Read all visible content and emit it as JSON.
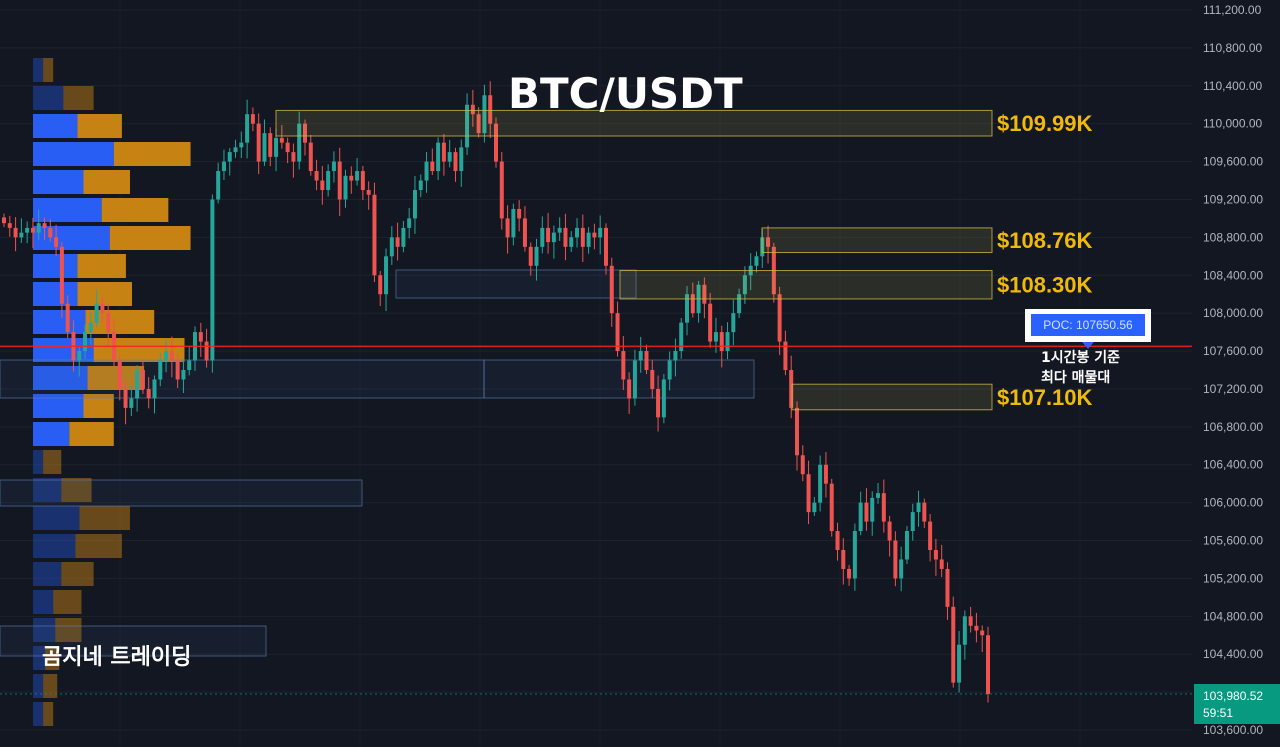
{
  "chart_data": {
    "type": "candlestick",
    "title": "BTC/USDT",
    "watermark": "곰지네 트레이딩",
    "y_axis": {
      "side": "right",
      "range": [
        103500,
        111250
      ],
      "ticks": [
        111200,
        110800,
        110400,
        110000,
        109600,
        109200,
        108800,
        108400,
        108000,
        107600,
        107200,
        106800,
        106400,
        106000,
        105600,
        105200,
        104800,
        104400,
        104000,
        103600
      ],
      "tick_labels": [
        "111,200.00",
        "110,800.00",
        "110,400.00",
        "110,000.00",
        "109,600.00",
        "109,200.00",
        "108,800.00",
        "108,400.00",
        "108,000.00",
        "107,600.00",
        "107,200.00",
        "106,800.00",
        "106,400.00",
        "106,000.00",
        "105,600.00",
        "105,200.00",
        "104,800.00",
        "104,400.00",
        "104,000.00",
        "103,600.00"
      ]
    },
    "grid": true,
    "colors": {
      "background": "#131722",
      "up": "#26a69a",
      "down": "#ef5350",
      "vp_buy": "#2962ff",
      "vp_sell": "#d18814",
      "level_label": "#f0b90b",
      "poc_line": "#ff1e1e",
      "price_tag": "#089981"
    },
    "levels": [
      {
        "label": "$109.99K",
        "low": 109870,
        "high": 110140
      },
      {
        "label": "$108.76K",
        "low": 108640,
        "high": 108900
      },
      {
        "label": "$108.30K",
        "low": 108150,
        "high": 108450
      },
      {
        "label": "$107.10K",
        "low": 106980,
        "high": 107250
      }
    ],
    "poc": {
      "label": "POC: 107650.56",
      "value": 107650.56,
      "note_line1": "1시간봉 기준",
      "note_line2": "최다 매물대"
    },
    "last_price": {
      "value": 103980.52,
      "label": "103,980.52",
      "timer": "59:51"
    },
    "volume_profile": [
      {
        "buy": 0.5,
        "sell": 0.5
      },
      {
        "buy": 1.5,
        "sell": 1.5
      },
      {
        "buy": 2.2,
        "sell": 2.2
      },
      {
        "buy": 4.0,
        "sell": 3.8
      },
      {
        "buy": 2.5,
        "sell": 2.3
      },
      {
        "buy": 3.4,
        "sell": 3.3
      },
      {
        "buy": 3.8,
        "sell": 4.0
      },
      {
        "buy": 2.2,
        "sell": 2.4
      },
      {
        "buy": 2.2,
        "sell": 2.7
      },
      {
        "buy": 2.6,
        "sell": 3.4
      },
      {
        "buy": 3.0,
        "sell": 4.5
      },
      {
        "buy": 2.7,
        "sell": 2.8
      },
      {
        "buy": 2.5,
        "sell": 1.5
      },
      {
        "buy": 1.8,
        "sell": 2.2
      },
      {
        "buy": 0.5,
        "sell": 0.9
      },
      {
        "buy": 1.4,
        "sell": 1.5
      },
      {
        "buy": 2.3,
        "sell": 2.5
      },
      {
        "buy": 2.1,
        "sell": 2.3
      },
      {
        "buy": 1.4,
        "sell": 1.6
      },
      {
        "buy": 1.0,
        "sell": 1.4
      },
      {
        "buy": 1.1,
        "sell": 1.3
      },
      {
        "buy": 0.6,
        "sell": 0.7
      },
      {
        "buy": 0.5,
        "sell": 0.7
      },
      {
        "buy": 0.5,
        "sell": 0.5
      }
    ],
    "candles_close": [
      108950,
      108900,
      108800,
      108850,
      108900,
      108850,
      108950,
      108900,
      108800,
      108700,
      108100,
      107800,
      107500,
      107600,
      107800,
      107900,
      108100,
      108000,
      107800,
      107500,
      107200,
      107000,
      107100,
      107400,
      107200,
      107100,
      107300,
      107500,
      107600,
      107500,
      107300,
      107400,
      107500,
      107800,
      107700,
      107500,
      109200,
      109500,
      109600,
      109700,
      109750,
      109800,
      110100,
      110000,
      109600,
      109900,
      109650,
      109850,
      109800,
      109700,
      109600,
      110000,
      109800,
      109500,
      109400,
      109300,
      109500,
      109600,
      109200,
      109450,
      109400,
      109500,
      109300,
      109250,
      108400,
      108200,
      108600,
      108800,
      108700,
      108900,
      109000,
      109300,
      109400,
      109600,
      109500,
      109800,
      109600,
      109700,
      109500,
      109750,
      110200,
      110100,
      109900,
      110300,
      110000,
      109600,
      109000,
      108800,
      109100,
      109000,
      108700,
      108500,
      108700,
      108900,
      108750,
      108850,
      108900,
      108700,
      108800,
      108900,
      108700,
      108850,
      108800,
      108900,
      108500,
      108000,
      107600,
      107300,
      107100,
      107500,
      107600,
      107400,
      107200,
      106900,
      107300,
      107500,
      107600,
      107900,
      108200,
      108000,
      108300,
      108100,
      107700,
      107800,
      107600,
      107800,
      108000,
      108200,
      108400,
      108500,
      108600,
      108800,
      108700,
      108200,
      107700,
      107400,
      107000,
      106500,
      106300,
      105900,
      106000,
      106400,
      106200,
      105700,
      105500,
      105300,
      105200,
      105700,
      106000,
      105800,
      106050,
      106100,
      105800,
      105600,
      105200,
      105400,
      105700,
      105900,
      106000,
      105800,
      105500,
      105400,
      105300,
      104900,
      104100,
      104500,
      104800,
      104700,
      104650,
      104600,
      103980
    ]
  }
}
